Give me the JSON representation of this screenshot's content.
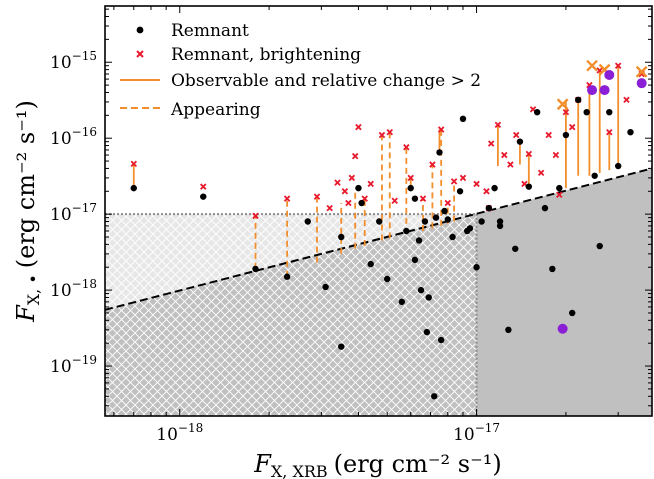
{
  "chart_data": {
    "type": "scatter",
    "title": "",
    "xlabel": {
      "main": "F",
      "sub": "X, XRB",
      "unit": "(erg cm⁻² s⁻¹)"
    },
    "ylabel": {
      "main": "F",
      "sub": "X, •",
      "unit": "(erg cm⁻² s⁻¹)"
    },
    "x_scale": "log",
    "y_scale": "log",
    "xlim": [
      5.6e-19,
      3.9e-17
    ],
    "ylim": [
      2.2e-20,
      5.5e-15
    ],
    "x_ticks": [
      {
        "value": 1e-18,
        "base": "10",
        "exp": "−18"
      },
      {
        "value": 1e-17,
        "base": "10",
        "exp": "−17"
      }
    ],
    "y_ticks": [
      {
        "value": 1e-19,
        "base": "10",
        "exp": "−19"
      },
      {
        "value": 1e-18,
        "base": "10",
        "exp": "−18"
      },
      {
        "value": 1e-17,
        "base": "10",
        "exp": "−17"
      },
      {
        "value": 1e-16,
        "base": "10",
        "exp": "−16"
      },
      {
        "value": 1e-15,
        "base": "10",
        "exp": "−15"
      }
    ],
    "grid": false,
    "legend_position": "top-left",
    "legend": [
      {
        "label": "Remnant",
        "marker": "dot"
      },
      {
        "label": "Remnant, brightening",
        "marker": "x"
      },
      {
        "label": "Observable and relative change > 2",
        "marker": "solid-line"
      },
      {
        "label": "Appearing",
        "marker": "dashed-line"
      }
    ],
    "colors": {
      "remnant": "#000000",
      "brightening": "#e8192c",
      "change": "#f28e2b",
      "detected": "#8a1fd6",
      "unobservable_fill": "#c0c0c0",
      "hatch_region_fill": "#e7e7e7",
      "hatch_stroke": "#ffffff"
    },
    "threshold_line": {
      "x1": 5.6e-19,
      "y1": 5.5e-19,
      "x2": 3.9e-17,
      "y2": 4e-17,
      "style": "dashed"
    },
    "flux_limit": 1e-17,
    "remnant": [
      [
        7e-19,
        2.2e-17
      ],
      [
        1.2e-18,
        1.7e-17
      ],
      [
        1.8e-18,
        1.9e-18
      ],
      [
        2.3e-18,
        1.5e-18
      ],
      [
        2.7e-18,
        8e-18
      ],
      [
        3.1e-18,
        1.1e-18
      ],
      [
        3.5e-18,
        1.8e-19
      ],
      [
        3.5e-18,
        5e-18
      ],
      [
        4e-18,
        2.2e-17
      ],
      [
        4.4e-18,
        2.2e-18
      ],
      [
        4.7e-18,
        8e-18
      ],
      [
        5e-18,
        1.4e-18
      ],
      [
        5.6e-18,
        7e-19
      ],
      [
        5.8e-18,
        6e-18
      ],
      [
        6e-18,
        2.2e-17
      ],
      [
        6.2e-18,
        2.5e-18
      ],
      [
        6.4e-18,
        4.5e-18
      ],
      [
        6.5e-18,
        1e-18
      ],
      [
        6.7e-18,
        8e-18
      ],
      [
        6.8e-18,
        2.8e-19
      ],
      [
        6.9e-18,
        8e-19
      ],
      [
        7.2e-18,
        4e-20
      ],
      [
        7.3e-18,
        9e-18
      ],
      [
        7.5e-18,
        6.5e-17
      ],
      [
        7.6e-18,
        2.2e-19
      ],
      [
        7.8e-18,
        1.1e-17
      ],
      [
        8e-18,
        8.5e-18
      ],
      [
        8.3e-18,
        5e-18
      ],
      [
        8.8e-18,
        2e-17
      ],
      [
        9e-18,
        1.8e-16
      ],
      [
        9.3e-18,
        6e-18
      ],
      [
        1e-17,
        2e-18
      ],
      [
        1.04e-17,
        8e-18
      ],
      [
        1.1e-17,
        1.2e-17
      ],
      [
        1.15e-17,
        2.2e-17
      ],
      [
        1.2e-17,
        8e-18
      ],
      [
        1.28e-17,
        3e-19
      ],
      [
        1.35e-17,
        3.5e-18
      ],
      [
        1.4e-17,
        9e-17
      ],
      [
        1.5e-17,
        2.3e-17
      ],
      [
        1.6e-17,
        2.2e-16
      ],
      [
        1.7e-17,
        1.2e-17
      ],
      [
        1.8e-17,
        1.9e-18
      ],
      [
        1.9e-17,
        2.2e-17
      ],
      [
        2e-17,
        1.1e-16
      ],
      [
        2.1e-17,
        5e-19
      ],
      [
        2.2e-17,
        3.2e-16
      ],
      [
        2.35e-17,
        2.2e-16
      ],
      [
        2.5e-17,
        3.2e-17
      ],
      [
        2.6e-17,
        3.8e-18
      ],
      [
        2.8e-17,
        2.2e-16
      ],
      [
        3e-17,
        4.3e-17
      ],
      [
        3.3e-17,
        1.2e-16
      ],
      [
        3.6e-17,
        5.5e-16
      ],
      [
        1.2e-17,
        7e-18
      ],
      [
        4.1e-18,
        1.4e-17
      ],
      [
        6.2e-18,
        1.6e-17
      ],
      [
        9.5e-18,
        6.5e-18
      ]
    ],
    "brightening": [
      [
        7e-19,
        4.6e-17
      ],
      [
        1.2e-18,
        2.3e-17
      ],
      [
        1.8e-18,
        9.5e-18
      ],
      [
        2.3e-18,
        1.6e-17
      ],
      [
        2.9e-18,
        1.7e-17
      ],
      [
        3.2e-18,
        1.2e-17
      ],
      [
        3.4e-18,
        2.6e-17
      ],
      [
        3.6e-18,
        2e-17
      ],
      [
        3.7e-18,
        1.4e-17
      ],
      [
        3.8e-18,
        3e-17
      ],
      [
        3.9e-18,
        5.8e-17
      ],
      [
        4e-18,
        1.4e-16
      ],
      [
        4.2e-18,
        1.6e-17
      ],
      [
        4.4e-18,
        2.5e-17
      ],
      [
        4.8e-18,
        1.1e-16
      ],
      [
        5.1e-18,
        1.2e-16
      ],
      [
        5.3e-18,
        1.5e-17
      ],
      [
        5.8e-18,
        7.6e-17
      ],
      [
        6e-18,
        3e-17
      ],
      [
        6.6e-18,
        1.6e-17
      ],
      [
        7.1e-18,
        4.5e-17
      ],
      [
        7.6e-18,
        1.3e-16
      ],
      [
        8e-18,
        1.4e-17
      ],
      [
        8.4e-18,
        2.7e-17
      ],
      [
        9e-18,
        3e-17
      ],
      [
        1e-17,
        2.5e-17
      ],
      [
        1.08e-17,
        2e-17
      ],
      [
        1.12e-17,
        8.5e-17
      ],
      [
        1.18e-17,
        1.5e-16
      ],
      [
        1.24e-17,
        6e-17
      ],
      [
        1.3e-17,
        4.5e-17
      ],
      [
        1.36e-17,
        1.1e-16
      ],
      [
        1.45e-17,
        2.5e-17
      ],
      [
        1.5e-17,
        6.2e-17
      ],
      [
        1.55e-17,
        2.4e-16
      ],
      [
        1.65e-17,
        3.5e-17
      ],
      [
        1.75e-17,
        1.1e-16
      ],
      [
        1.85e-17,
        6e-17
      ],
      [
        1.95e-17,
        2.8e-16
      ],
      [
        2e-17,
        2.2e-16
      ],
      [
        2.1e-17,
        1.4e-16
      ],
      [
        2.2e-17,
        3.2e-16
      ],
      [
        2.4e-17,
        5e-16
      ],
      [
        2.6e-17,
        7.8e-16
      ],
      [
        2.8e-17,
        1.2e-16
      ],
      [
        3e-17,
        9e-16
      ],
      [
        3.2e-17,
        3.2e-16
      ],
      [
        3.6e-17,
        7e-16
      ],
      [
        1.9e-17,
        1.8e-17
      ],
      [
        1.1e-17,
        1.2e-17
      ]
    ],
    "change_lines": [
      [
        7e-19,
        2.2e-17,
        4.6e-17
      ],
      [
        1.18e-17,
        4.3e-17,
        1.5e-16
      ],
      [
        1.5e-17,
        2.3e-17,
        6.2e-17
      ],
      [
        2e-17,
        2.2e-17,
        3.2e-16
      ],
      [
        2.2e-17,
        3.2e-17,
        3.2e-16
      ],
      [
        2.4e-17,
        3.2e-17,
        5e-16
      ],
      [
        2.6e-17,
        3.5e-17,
        7.8e-16
      ],
      [
        3e-17,
        4.3e-17,
        9e-16
      ],
      [
        6e-18,
        2.2e-17,
        3e-17
      ],
      [
        7.5e-18,
        6.5e-17,
        1.3e-16
      ],
      [
        1.4e-17,
        4.5e-17,
        9e-17
      ],
      [
        2.8e-17,
        3.8e-17,
        1.2e-16
      ]
    ],
    "appearing_lines": [
      [
        1.8e-18,
        1.9e-18,
        9.5e-18
      ],
      [
        2.3e-18,
        1.5e-18,
        1.6e-17
      ],
      [
        2.9e-18,
        2.3e-18,
        1.7e-17
      ],
      [
        3.5e-18,
        3e-18,
        1.4e-17
      ],
      [
        3.9e-18,
        3.5e-18,
        2e-17
      ],
      [
        4.2e-18,
        3.8e-18,
        1.6e-17
      ],
      [
        4.8e-18,
        4.5e-18,
        1.1e-16
      ],
      [
        5.1e-18,
        4.8e-18,
        1.2e-16
      ],
      [
        5.8e-18,
        5.5e-18,
        7.6e-17
      ],
      [
        6.6e-18,
        6e-18,
        1.6e-17
      ],
      [
        7.1e-18,
        6.5e-18,
        4.5e-17
      ],
      [
        7.6e-18,
        7e-18,
        1.3e-16
      ],
      [
        8e-18,
        7.5e-18,
        1.4e-17
      ],
      [
        8.4e-18,
        8e-18,
        2.7e-17
      ]
    ],
    "detected_x_markers": [
      [
        1.95e-17,
        2.8e-16
      ],
      [
        2.45e-17,
        9e-16
      ],
      [
        2.7e-17,
        8e-16
      ],
      [
        3.6e-17,
        7.5e-16
      ]
    ],
    "detected_dots": [
      [
        1.95e-17,
        3.1e-19
      ],
      [
        2.45e-17,
        4.3e-16
      ],
      [
        2.7e-17,
        4.3e-16
      ],
      [
        3.6e-17,
        5.3e-16
      ],
      [
        2.8e-17,
        6.8e-16
      ]
    ]
  }
}
